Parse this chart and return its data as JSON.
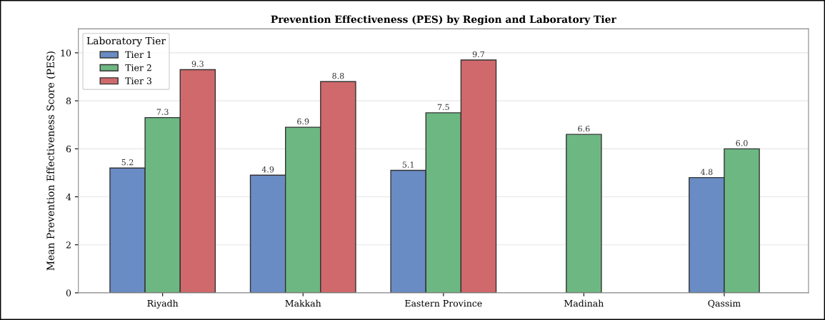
{
  "chart_data": {
    "type": "bar",
    "title": "Prevention Effectiveness (PES) by Region and Laboratory Tier",
    "ylabel": "Mean Prevention Effectiveness Score (PES)",
    "legend_title": "Laboratory Tier",
    "categories": [
      "Riyadh",
      "Makkah",
      "Eastern Province",
      "Madinah",
      "Qassim"
    ],
    "series": [
      {
        "name": "Tier 1",
        "color": "#6a8cc4",
        "values": [
          5.2,
          4.9,
          5.1,
          null,
          4.8
        ],
        "value_labels": [
          "5.2",
          "4.9",
          "5.1",
          null,
          "4.8"
        ]
      },
      {
        "name": "Tier 2",
        "color": "#6db882",
        "values": [
          7.3,
          6.9,
          7.5,
          6.6,
          6.0
        ],
        "value_labels": [
          "7.3",
          "6.9",
          "7.5",
          "6.6",
          "6.0"
        ]
      },
      {
        "name": "Tier 3",
        "color": "#d0696b",
        "values": [
          9.3,
          8.8,
          9.7,
          null,
          null
        ],
        "value_labels": [
          "9.3",
          "8.8",
          "9.7",
          null,
          null
        ]
      }
    ],
    "ylim": [
      0,
      11
    ],
    "yticks": [
      0,
      2,
      4,
      6,
      8,
      10
    ],
    "grid": "y",
    "legend": "top left"
  }
}
